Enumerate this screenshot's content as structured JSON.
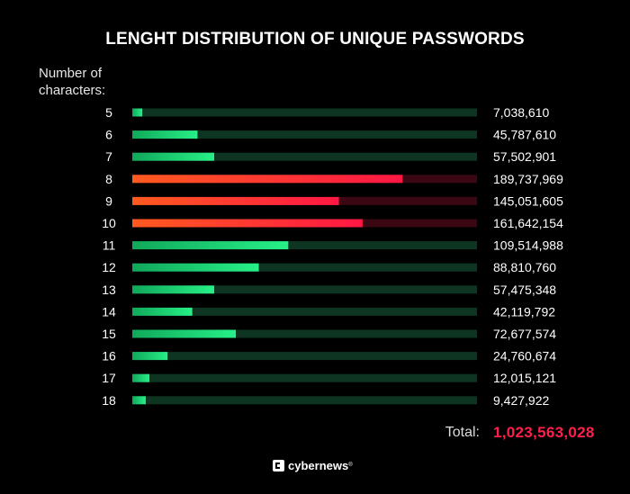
{
  "chart_data": {
    "type": "bar",
    "orientation": "horizontal",
    "title": "LENGHT DISTRIBUTION OF UNIQUE PASSWORDS",
    "ylabel_lines": [
      "Number of",
      "characters:"
    ],
    "categories": [
      "5",
      "6",
      "7",
      "8",
      "9",
      "10",
      "11",
      "12",
      "13",
      "14",
      "15",
      "16",
      "17",
      "18"
    ],
    "values": [
      7038610,
      45787610,
      57502901,
      189737969,
      145051605,
      161642154,
      109514988,
      88810760,
      57475348,
      42119792,
      72677574,
      24760674,
      12015121,
      9427922
    ],
    "value_labels": [
      "7,038,610",
      "45,787,610",
      "57,502,901",
      "189,737,969",
      "145,051,605",
      "161,642,154",
      "109,514,988",
      "88,810,760",
      "57,475,348",
      "42,119,792",
      "72,677,574",
      "24,760,674",
      "12,015,121",
      "9,427,922"
    ],
    "highlighted": [
      "8",
      "9",
      "10"
    ],
    "xlim": [
      0,
      242000000
    ],
    "colors": {
      "normal_bar": "#1de27a",
      "normal_track": "#0d3521",
      "highlight_bar": "#ff2d3f",
      "highlight_track": "#3a0712"
    },
    "total_label": "Total:",
    "total_value": "1,023,563,028"
  },
  "brand": {
    "name": "cybernews",
    "mark": "®",
    "logo_icon": "cybernews-logo-icon"
  }
}
